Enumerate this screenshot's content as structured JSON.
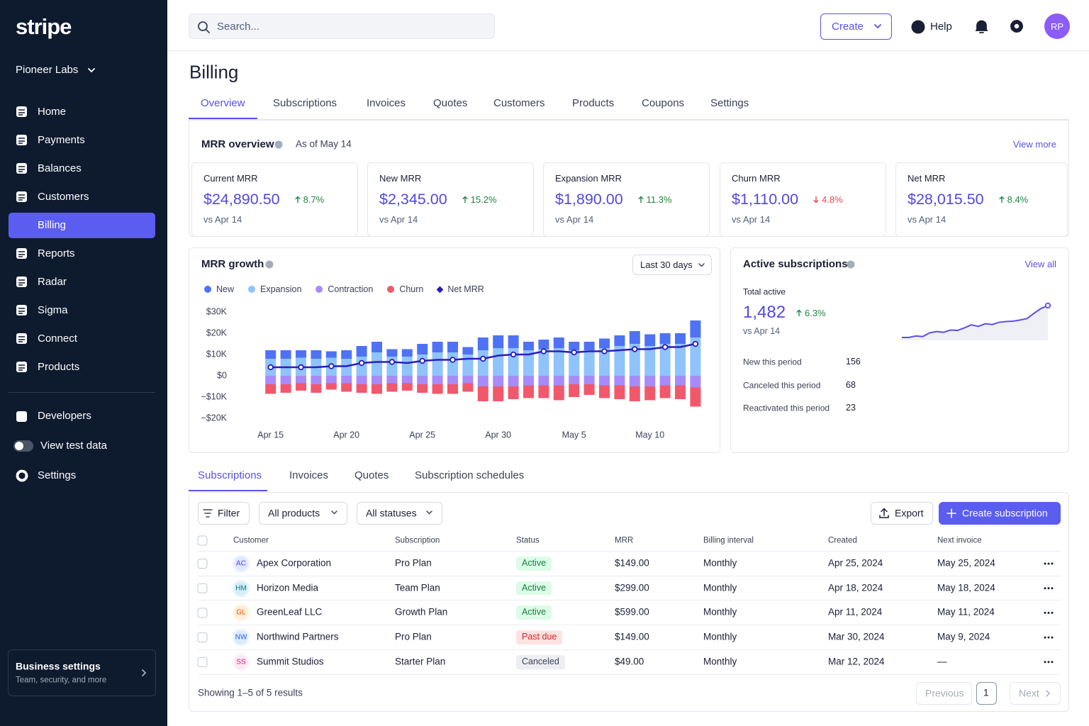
{
  "sidebar": {
    "logo": "stripe",
    "account": "Pioneer Labs",
    "nav": [
      {
        "label": "Home",
        "active": false
      },
      {
        "label": "Payments",
        "active": false
      },
      {
        "label": "Balances",
        "active": false
      },
      {
        "label": "Customers",
        "active": false
      },
      {
        "label": "Billing",
        "active": true
      },
      {
        "label": "Reports",
        "active": false
      },
      {
        "label": "Radar",
        "active": false
      },
      {
        "label": "Sigma",
        "active": false
      },
      {
        "label": "Connect",
        "active": false
      },
      {
        "label": "Products",
        "active": false
      }
    ],
    "developers": "Developers",
    "test_data": "View test data",
    "settings": "Settings",
    "business": {
      "title": "Business settings",
      "subtitle": "Team, security, and more"
    }
  },
  "topbar": {
    "search": "Search...",
    "create": "Create",
    "help": "Help",
    "avatar": "RP"
  },
  "page": {
    "title": "Billing",
    "tabs": [
      {
        "label": "Overview",
        "active": true
      },
      {
        "label": "Subscriptions",
        "active": false
      },
      {
        "label": "Invoices",
        "active": false
      },
      {
        "label": "Quotes",
        "active": false
      },
      {
        "label": "Customers",
        "active": false
      },
      {
        "label": "Products",
        "active": false
      },
      {
        "label": "Coupons",
        "active": false
      },
      {
        "label": "Settings",
        "active": false
      }
    ]
  },
  "mrr_overview": {
    "title": "MRR overview",
    "as_of": "As of May 14",
    "link": "View more",
    "cards": [
      {
        "label": "Current MRR",
        "value": "$24,890.50",
        "change": "8.7%",
        "direction": "up",
        "comparison": "vs Apr 14"
      },
      {
        "label": "New MRR",
        "value": "$2,345.00",
        "change": "15.2%",
        "direction": "up",
        "comparison": "vs Apr 14"
      },
      {
        "label": "Expansion MRR",
        "value": "$1,890.00",
        "change": "11.3%",
        "direction": "up",
        "comparison": "vs Apr 14"
      },
      {
        "label": "Churn MRR",
        "value": "$1,110.00",
        "change": "4.8%",
        "direction": "down",
        "comparison": "vs Apr 14"
      },
      {
        "label": "Net MRR",
        "value": "$28,015.50",
        "change": "8.4%",
        "direction": "up",
        "comparison": "vs Apr 14"
      }
    ]
  },
  "chart_data": {
    "type": "bar",
    "title": "MRR growth",
    "period": "Last 30 days",
    "stacked": true,
    "grid": false,
    "categories": [
      "Apr 15",
      null,
      null,
      null,
      null,
      "Apr 20",
      null,
      null,
      null,
      null,
      "Apr 25",
      null,
      null,
      null,
      null,
      "Apr 30",
      null,
      null,
      null,
      null,
      "May 5",
      null,
      null,
      null,
      null,
      "May 10",
      null,
      null,
      null
    ],
    "series": [
      {
        "name": "New",
        "color": "#4f72f5",
        "values": [
          4000,
          4000,
          3500,
          4000,
          3000,
          4000,
          5000,
          5000,
          3500,
          3500,
          5000,
          5000,
          5000,
          3500,
          6000,
          6000,
          6000,
          4000,
          4500,
          5000,
          4000,
          4000,
          4500,
          5000,
          6000,
          5500,
          5000,
          5000,
          8000
        ]
      },
      {
        "name": "Expansion",
        "color": "#8fc3fb",
        "values": [
          8000,
          8000,
          8500,
          8000,
          8500,
          8000,
          9000,
          11000,
          9000,
          9000,
          10000,
          11000,
          11000,
          10000,
          12000,
          13000,
          13000,
          12000,
          12500,
          13000,
          12000,
          12000,
          13000,
          14000,
          15000,
          14000,
          15000,
          15000,
          18000
        ]
      },
      {
        "name": "Contraction",
        "color": "#a78bfa",
        "values": [
          -4000,
          -4000,
          -3500,
          -4000,
          -3500,
          -3500,
          -4000,
          -4000,
          -3500,
          -3500,
          -4000,
          -4000,
          -4000,
          -3500,
          -5000,
          -5000,
          -5000,
          -4500,
          -4500,
          -4500,
          -4000,
          -4000,
          -4500,
          -4500,
          -5000,
          -5000,
          -4500,
          -4500,
          -5500
        ]
      },
      {
        "name": "Churn",
        "color": "#f2586b",
        "values": [
          -4500,
          -4000,
          -3500,
          -4000,
          -3000,
          -4000,
          -4000,
          -4500,
          -4000,
          -3500,
          -4000,
          -4500,
          -4500,
          -4000,
          -7000,
          -7000,
          -6000,
          -6000,
          -6000,
          -7000,
          -6000,
          -5000,
          -6000,
          -6500,
          -7000,
          -6500,
          -6000,
          -6500,
          -9000
        ]
      },
      {
        "name": "Net MRR",
        "type": "line",
        "color": "#2a1fb8",
        "values": [
          4000,
          4000,
          4000,
          4000,
          4500,
          4500,
          6000,
          6500,
          6500,
          6000,
          7000,
          7500,
          7500,
          8000,
          8000,
          9500,
          10000,
          10000,
          11500,
          11500,
          11000,
          11500,
          11500,
          12000,
          12500,
          12500,
          13500,
          13500,
          15000
        ]
      }
    ],
    "ylim": [
      -22000,
      32000
    ],
    "yticks": [
      {
        "value": 30000,
        "label": "$30K"
      },
      {
        "value": 20000,
        "label": "$20K"
      },
      {
        "value": 10000,
        "label": "$10K"
      },
      {
        "value": 0,
        "label": "$0"
      },
      {
        "value": -10000,
        "label": "−$10K"
      },
      {
        "value": -20000,
        "label": "−$20K"
      }
    ]
  },
  "active_subscriptions": {
    "title": "Active subscriptions",
    "link": "View all",
    "total_label": "Total active",
    "total": "1,482",
    "change": "6.3%",
    "direction": "up",
    "comparison": "vs Apr 14",
    "trend": [
      1310,
      1310,
      1318,
      1315,
      1335,
      1342,
      1338,
      1350,
      1348,
      1362,
      1378,
      1370,
      1384,
      1380,
      1392,
      1396,
      1398,
      1404,
      1412,
      1440,
      1466,
      1482
    ],
    "trend_color": "#5b4fe8",
    "stats": [
      {
        "label": "New this period",
        "value": 156
      },
      {
        "label": "Canceled this period",
        "value": 68
      },
      {
        "label": "Reactivated this period",
        "value": 23
      }
    ]
  },
  "subscriptions": {
    "tabs": [
      {
        "label": "Subscriptions",
        "active": true
      },
      {
        "label": "Invoices",
        "active": false
      },
      {
        "label": "Quotes",
        "active": false
      },
      {
        "label": "Subscription schedules",
        "active": false
      }
    ],
    "filter": "Filter",
    "products": "All products",
    "statuses": "All statuses",
    "export": "Export",
    "create": "Create subscription",
    "columns": [
      "Customer",
      "Subscription",
      "Status",
      "MRR",
      "Billing interval",
      "Created",
      "Next invoice"
    ],
    "rows": [
      {
        "initials": "AC",
        "avatar_bg": "#e0e7ff",
        "avatar_fg": "#4f46e5",
        "customer": "Apex Corporation",
        "plan": "Pro Plan",
        "status": "Active",
        "status_bg": "#dcfce7",
        "status_fg": "#15803d",
        "mrr": "$149.00",
        "interval": "Monthly",
        "created": "Apr 25, 2024",
        "next": "May 25, 2024"
      },
      {
        "initials": "HM",
        "avatar_bg": "#d5eef5",
        "avatar_fg": "#0e7490",
        "customer": "Horizon Media",
        "plan": "Team Plan",
        "status": "Active",
        "status_bg": "#dcfce7",
        "status_fg": "#15803d",
        "mrr": "$299.00",
        "interval": "Monthly",
        "created": "Apr 18, 2024",
        "next": "May 18, 2024"
      },
      {
        "initials": "GL",
        "avatar_bg": "#ffedd5",
        "avatar_fg": "#ea580c",
        "customer": "GreenLeaf LLC",
        "plan": "Growth Plan",
        "status": "Active",
        "status_bg": "#dcfce7",
        "status_fg": "#15803d",
        "mrr": "$599.00",
        "interval": "Monthly",
        "created": "Apr 11, 2024",
        "next": "May 11, 2024"
      },
      {
        "initials": "NW",
        "avatar_bg": "#dbeafe",
        "avatar_fg": "#2563eb",
        "customer": "Northwind Partners",
        "plan": "Pro Plan",
        "status": "Past due",
        "status_bg": "#fee2e2",
        "status_fg": "#dc2626",
        "mrr": "$149.00",
        "interval": "Monthly",
        "created": "Mar 30, 2024",
        "next": "May 9, 2024"
      },
      {
        "initials": "SS",
        "avatar_bg": "#fce7f3",
        "avatar_fg": "#db2777",
        "customer": "Summit Studios",
        "plan": "Starter Plan",
        "status": "Canceled",
        "status_bg": "#eceef2",
        "status_fg": "#3c4257",
        "mrr": "$49.00",
        "interval": "Monthly",
        "created": "Mar 12, 2024",
        "next": "—"
      }
    ],
    "summary": "Showing 1–5 of 5 results",
    "previous": "Previous",
    "page": 1,
    "next": "Next"
  }
}
